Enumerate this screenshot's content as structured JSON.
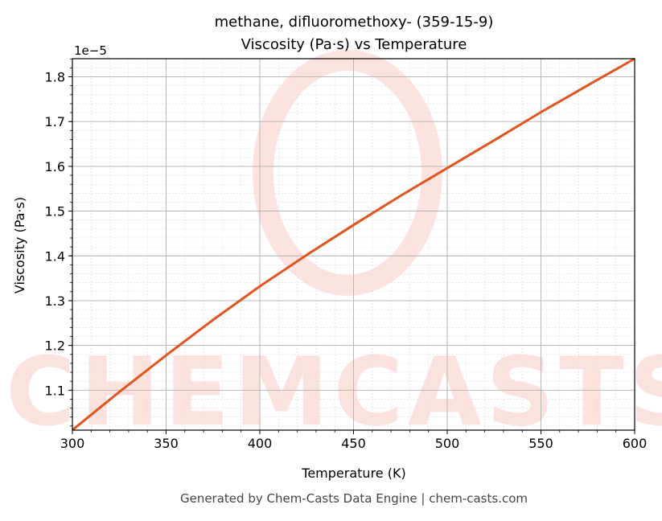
{
  "chart_data": {
    "type": "line",
    "title": "methane, difluoromethoxy- (359-15-9)",
    "subtitle": "Viscosity (Pa·s) vs Temperature",
    "xlabel": "Temperature (K)",
    "ylabel": "Viscosity (Pa·s)",
    "y_scale_label": "1e−5",
    "xlim": [
      300,
      600
    ],
    "ylim": [
      1.0107,
      1.8405
    ],
    "x_ticks": [
      300,
      350,
      400,
      450,
      500,
      550,
      600
    ],
    "x_tick_labels": [
      "300",
      "350",
      "400",
      "450",
      "500",
      "550",
      "600"
    ],
    "y_ticks": [
      1.1,
      1.2,
      1.3,
      1.4,
      1.5,
      1.6,
      1.7,
      1.8
    ],
    "y_tick_labels": [
      "1.1",
      "1.2",
      "1.3",
      "1.4",
      "1.5",
      "1.6",
      "1.7",
      "1.8"
    ],
    "grid": true,
    "series": [
      {
        "name": "Viscosity",
        "color": "#e0541f",
        "x": [
          300,
          325,
          350,
          375,
          400,
          425,
          450,
          475,
          500,
          525,
          550,
          575,
          600
        ],
        "y": [
          1.011,
          1.096,
          1.178,
          1.257,
          1.332,
          1.402,
          1.469,
          1.534,
          1.596,
          1.658,
          1.721,
          1.781,
          1.8405
        ]
      }
    ]
  },
  "watermark": "CHEMCASTS",
  "footer": "Generated by Chem-Casts Data Engine | chem-casts.com"
}
